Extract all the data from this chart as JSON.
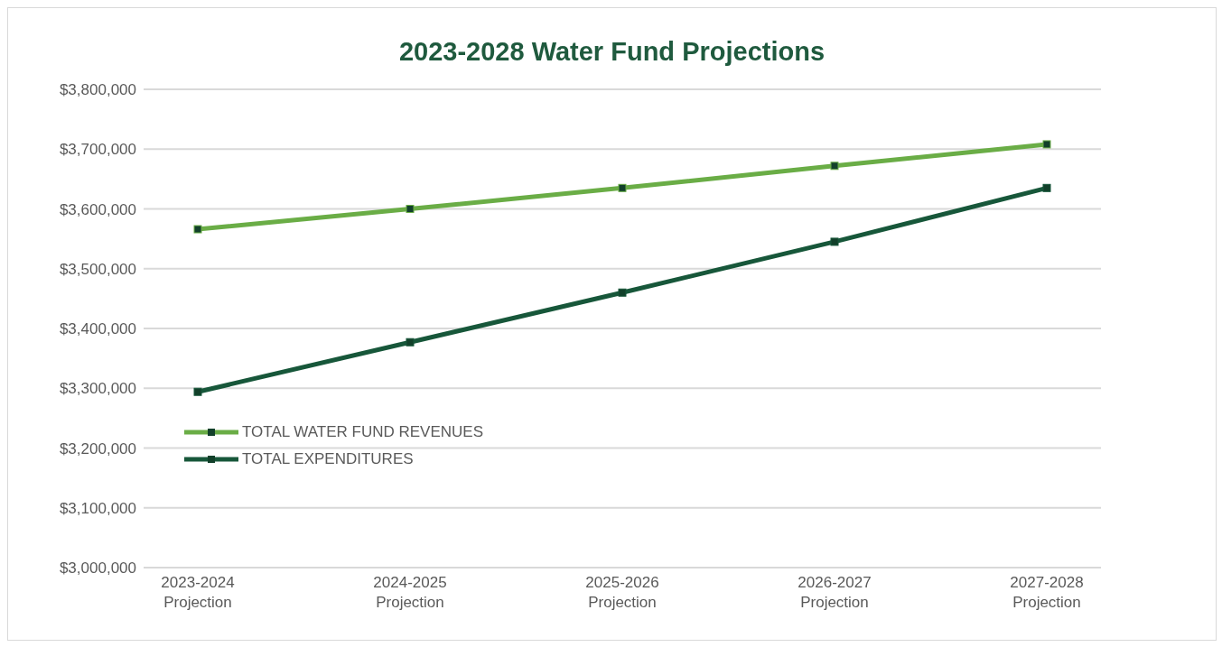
{
  "chart_data": {
    "type": "line",
    "title": "2023-2028 Water Fund Projections",
    "categories": [
      "2023-2024 Projection",
      "2024-2025 Projection",
      "2025-2026 Projection",
      "2026-2027 Projection",
      "2027-2028 Projection"
    ],
    "series": [
      {
        "name": "TOTAL WATER FUND REVENUES",
        "color": "#6aad46",
        "values": [
          3566000,
          3600000,
          3635000,
          3672000,
          3708000
        ]
      },
      {
        "name": "TOTAL EXPENDITURES",
        "color": "#17573a",
        "values": [
          3294000,
          3377000,
          3460000,
          3545000,
          3635000
        ]
      }
    ],
    "ylim": [
      3000000,
      3800000
    ],
    "yticks": [
      {
        "value": 3000000,
        "label": "$3,000,000"
      },
      {
        "value": 3100000,
        "label": "$3,100,000"
      },
      {
        "value": 3200000,
        "label": "$3,200,000"
      },
      {
        "value": 3300000,
        "label": "$3,300,000"
      },
      {
        "value": 3400000,
        "label": "$3,400,000"
      },
      {
        "value": 3500000,
        "label": "$3,500,000"
      },
      {
        "value": 3600000,
        "label": "$3,600,000"
      },
      {
        "value": 3700000,
        "label": "$3,700,000"
      },
      {
        "value": 3800000,
        "label": "$3,800,000"
      }
    ],
    "grid": "y",
    "legend": "bottom left",
    "marker": "square",
    "line_style": "solid"
  }
}
